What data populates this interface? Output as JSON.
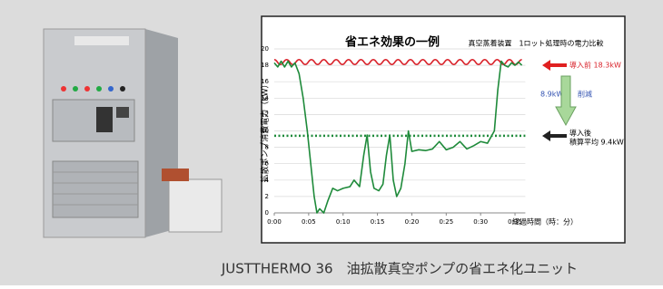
{
  "chart_data": {
    "type": "line",
    "title": "省エネ効果の一例",
    "subtitle": "真空蒸着装置　1ロット処理時の電力比較",
    "y_label": "拡散ポンプ消費電力（kW）",
    "x_label": "経過時間（時：分）",
    "xlim": [
      0,
      36.5
    ],
    "xticks": [
      {
        "value": 0,
        "label": "0:00"
      },
      {
        "value": 5,
        "label": "0:05"
      },
      {
        "value": 10,
        "label": "0:10"
      },
      {
        "value": 15,
        "label": "0:15"
      },
      {
        "value": 20,
        "label": "0:20"
      },
      {
        "value": 25,
        "label": "0:25"
      },
      {
        "value": 30,
        "label": "0:30"
      },
      {
        "value": 35,
        "label": "0:35"
      }
    ],
    "ylim": [
      0,
      20
    ],
    "yticks": [
      0,
      2,
      4,
      6,
      8,
      10,
      12,
      14,
      16,
      18,
      20
    ],
    "grid": true,
    "series": [
      {
        "color": "#d9232b",
        "smooth": true,
        "x": [
          0,
          0.9,
          1.8,
          2.7,
          3.6,
          4.5,
          5.4,
          6.3,
          7.2,
          8.1,
          9,
          9.9,
          10.8,
          11.7,
          12.6,
          13.5,
          14.4,
          15.3,
          16.2,
          17.1,
          18,
          18.9,
          19.8,
          20.7,
          21.6,
          22.5,
          23.4,
          24.3,
          25.2,
          26.1,
          27,
          27.9,
          28.8,
          29.7,
          30.6,
          31.5,
          32.4,
          33.3,
          34.2,
          35.1,
          36
        ],
        "values": [
          18.7,
          18.1,
          18.7,
          18.1,
          18.7,
          18.1,
          18.7,
          18.1,
          18.7,
          18.1,
          18.7,
          18.1,
          18.7,
          18.1,
          18.7,
          18.1,
          18.7,
          18.1,
          18.7,
          18.1,
          18.7,
          18.1,
          18.7,
          18.1,
          18.7,
          18.1,
          18.7,
          18.1,
          18.7,
          18.1,
          18.7,
          18.1,
          18.7,
          18.1,
          18.7,
          18.1,
          18.7,
          18.1,
          18.7,
          18.1,
          18.7
        ]
      },
      {
        "color": "#1e8a3a",
        "smooth": false,
        "x": [
          0,
          0.5,
          1,
          1.5,
          2,
          2.5,
          3,
          3.6,
          4.2,
          4.8,
          5.3,
          5.8,
          6.2,
          6.6,
          7.2,
          7.8,
          8.5,
          9.2,
          10,
          11,
          11.6,
          12.4,
          13,
          13.5,
          14,
          14.5,
          15.2,
          15.8,
          16.3,
          16.8,
          17.3,
          17.8,
          18.4,
          19,
          19.5,
          20,
          21,
          22,
          23,
          24,
          25,
          26,
          27,
          28,
          29,
          30,
          31,
          32,
          32.5,
          33,
          33.5,
          34,
          34.5,
          35,
          35.5,
          36
        ],
        "values": [
          18.3,
          17.8,
          18.5,
          17.8,
          18.5,
          17.8,
          18.3,
          17,
          14,
          10,
          6,
          2,
          0,
          0.5,
          0,
          1.5,
          3,
          2.7,
          3,
          3.2,
          4,
          3.2,
          7,
          9.5,
          5,
          3,
          2.7,
          3.5,
          7,
          9.5,
          4,
          2,
          3,
          6,
          10,
          7.5,
          7.7,
          7.6,
          7.8,
          8.7,
          7.7,
          8,
          8.7,
          7.8,
          8.2,
          8.7,
          8.5,
          10,
          15,
          18.5,
          18,
          17.8,
          18.3,
          18,
          18.4,
          18
        ]
      }
    ],
    "reference_line": {
      "value": 9.4,
      "color": "#1e8a3a"
    },
    "annotations": [
      "導入前 18.3kW",
      "8.9kW",
      "削減",
      "導入後",
      "積算平均 9.4kW"
    ]
  },
  "caption": "JUSTTHERMO 36　油拡散真空ポンプの省エネ化ユニット"
}
